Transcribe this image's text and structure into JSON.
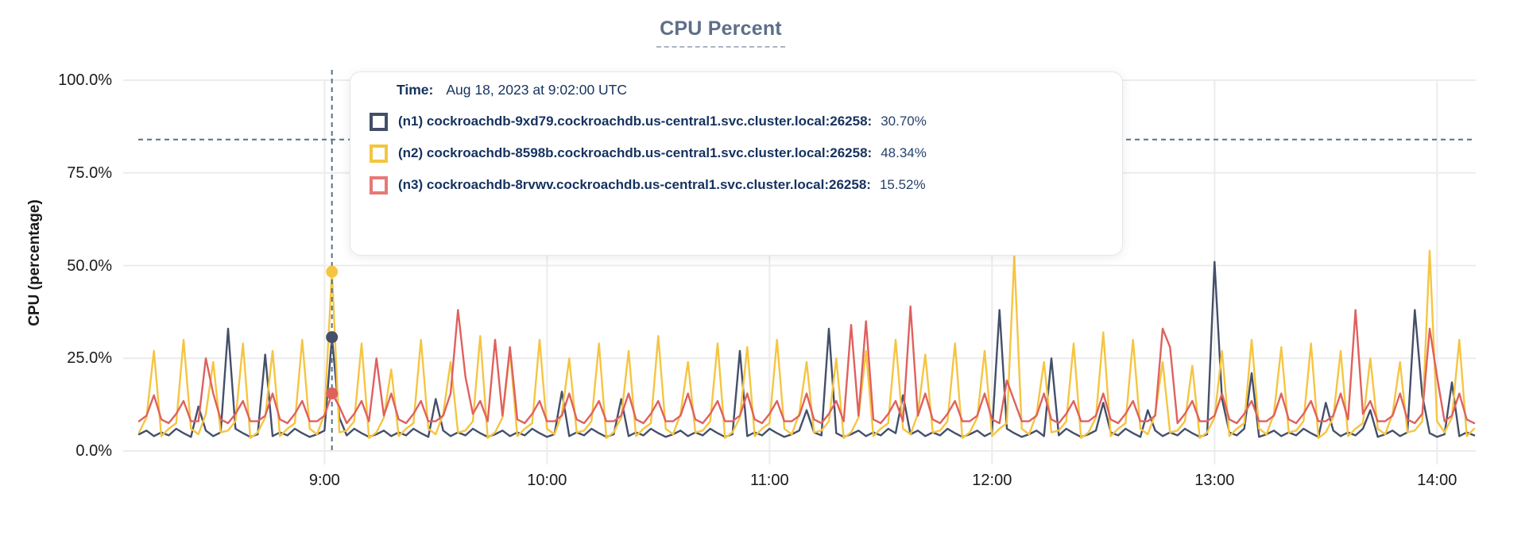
{
  "chart": {
    "title": "CPU Percent",
    "ylabel": "CPU (percentage)",
    "yticks": [
      {
        "label": "100.0%",
        "value": 100
      },
      {
        "label": "75.0%",
        "value": 75
      },
      {
        "label": "50.0%",
        "value": 50
      },
      {
        "label": "25.0%",
        "value": 25
      },
      {
        "label": "0.0%",
        "value": 0
      }
    ],
    "xticks": [
      {
        "label": "9:00",
        "index": 25
      },
      {
        "label": "10:00",
        "index": 55
      },
      {
        "label": "11:00",
        "index": 85
      },
      {
        "label": "12:00",
        "index": 115
      },
      {
        "label": "13:00",
        "index": 145
      },
      {
        "label": "14:00",
        "index": 175
      }
    ],
    "grid_color": "#ececec",
    "crosshair_color": "#567286",
    "title_color": "#5d6e88"
  },
  "tooltip": {
    "time_label": "Time:",
    "time_value": "Aug 18, 2023 at 9:02:00 UTC",
    "rows": [
      {
        "id": "n1",
        "label": "(n1) cockroachdb-9xd79.cockroachdb.us-central1.svc.cluster.local:26258:",
        "value": "30.70%",
        "color": "#434e68"
      },
      {
        "id": "n2",
        "label": "(n2) cockroachdb-8598b.cockroachdb.us-central1.svc.cluster.local:26258:",
        "value": "48.34%",
        "color": "#f2c63e"
      },
      {
        "id": "n3",
        "label": "(n3) cockroachdb-8rvwv.cockroachdb.us-central1.svc.cluster.local:26258:",
        "value": "15.52%",
        "color": "#e57a76"
      }
    ]
  },
  "chart_data": {
    "type": "line",
    "title": "CPU Percent",
    "xlabel": "",
    "ylabel": "CPU (percentage)",
    "ylim": [
      0,
      100
    ],
    "yticks": [
      "0.0%",
      "25.0%",
      "50.0%",
      "75.0%",
      "100.0%"
    ],
    "xticks": [
      "9:00",
      "10:00",
      "11:00",
      "12:00",
      "13:00",
      "14:00"
    ],
    "x_start_time": "8:10",
    "x_end_time": "14:10",
    "sample_interval_minutes": 2,
    "points_per_series": 181,
    "grid": true,
    "legend_position": "tooltip-overlay",
    "hover": {
      "time": "Aug 18, 2023 at 9:02:00 UTC",
      "crosshair_index": 26,
      "crosshair_x_time": "9:02",
      "crosshair_y_percent": 84,
      "values": {
        "n1": 30.7,
        "n2": 48.34,
        "n3": 15.52
      }
    },
    "series": [
      {
        "id": "n1",
        "name": "(n1) cockroachdb-9xd79.cockroachdb.us-central1.svc.cluster.local:26258",
        "color": "#444f69",
        "base_pattern": [
          4.5,
          5.5,
          4,
          5,
          4.2,
          6,
          4.8,
          3.8
        ],
        "spike_overrides": {
          "8": 12,
          "12": 33,
          "17": 26,
          "26": 30.7,
          "27": 9,
          "40": 14,
          "57": 16,
          "65": 14,
          "81": 27,
          "90": 11,
          "93": 33,
          "103": 15,
          "116": 38,
          "123": 25,
          "130": 13,
          "136": 11,
          "145": 51,
          "146": 14,
          "150": 21,
          "160": 13,
          "166": 11,
          "172": 38,
          "173": 15,
          "177": 18.5
        }
      },
      {
        "id": "n2",
        "name": "(n2) cockroachdb-8598b.cockroachdb.us-central1.svc.cluster.local:26258",
        "color": "#f5c542",
        "base_pattern": [
          5,
          9,
          27,
          4,
          6,
          7.5,
          30,
          6,
          4.5,
          10,
          24,
          5,
          5.5,
          8,
          29,
          3.5
        ],
        "spike_overrides": {
          "26": 48.3,
          "27": 5,
          "34": 22,
          "46": 31,
          "58": 25,
          "70": 31,
          "82": 28,
          "94": 25,
          "106": 26,
          "118": 52.5,
          "130": 32,
          "142": 23,
          "154": 28,
          "166": 25,
          "174": 54,
          "175": 8,
          "178": 30
        }
      },
      {
        "id": "n3",
        "name": "(n3) cockroachdb-8rvwv.cockroachdb.us-central1.svc.cluster.local:26258",
        "color": "#df615e",
        "base_pattern": [
          8,
          9.5,
          15.5,
          8.5,
          7.5,
          10,
          13.5,
          8
        ],
        "spike_overrides": {
          "2": 15,
          "9": 25,
          "26": 15.5,
          "27": 12,
          "32": 25,
          "43": 38,
          "44": 20,
          "48": 30,
          "50": 28,
          "96": 34,
          "98": 35,
          "104": 39,
          "117": 19,
          "138": 33,
          "139": 28,
          "164": 38,
          "174": 33,
          "175": 20
        }
      }
    ]
  }
}
